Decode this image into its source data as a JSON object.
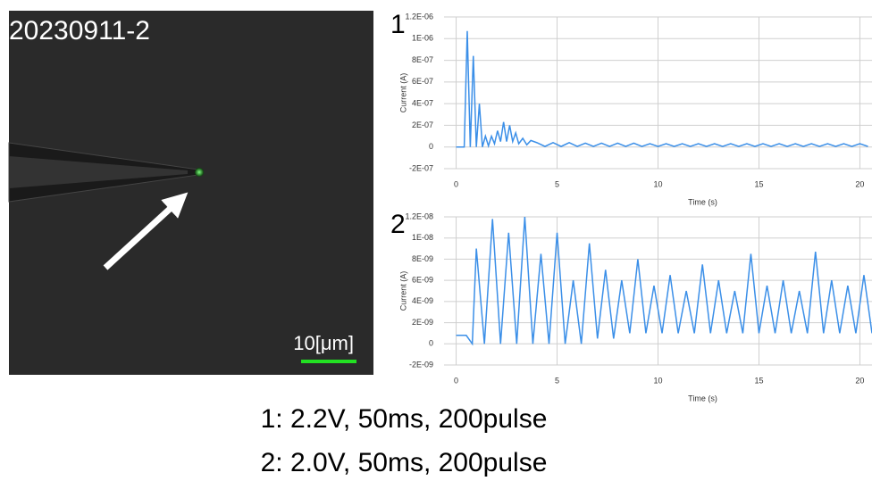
{
  "image": {
    "label": "20230911-2",
    "scale_bar": "10[μm]"
  },
  "caption": [
    "1: 2.2V, 50ms, 200pulse",
    "2: 2.0V, 50ms, 200pulse"
  ],
  "chart_data": [
    {
      "type": "line",
      "title": "1",
      "xlabel": "Time (s)",
      "ylabel": "Current (A)",
      "grid": true,
      "xlim": [
        -0.6,
        20.6
      ],
      "xticks": [
        0,
        5,
        10,
        15,
        20
      ],
      "ylim": [
        -2e-07,
        1.2e-06
      ],
      "yticks": [
        {
          "value": -2e-07,
          "label": "-2E-07"
        },
        0,
        {
          "value": 2e-07,
          "label": "2E-07"
        },
        {
          "value": 4e-07,
          "label": "4E-07"
        },
        {
          "value": 6e-07,
          "label": "6E-07"
        },
        {
          "value": 8e-07,
          "label": "8E-07"
        },
        {
          "value": 1e-06,
          "label": "1E-06"
        },
        {
          "value": 1.2e-06,
          "label": "1.2E-06"
        }
      ],
      "series": [
        {
          "color": "#3b8fe8",
          "x": [
            0,
            0.4,
            0.55,
            0.7,
            0.85,
            1.0,
            1.15,
            1.3,
            1.45,
            1.6,
            1.75,
            1.9,
            2.05,
            2.2,
            2.35,
            2.5,
            2.65,
            2.8,
            2.95,
            3.1,
            3.3,
            3.5,
            3.7,
            4.0,
            4.4,
            4.8,
            5.2,
            5.6,
            6.0,
            6.4,
            6.8,
            7.2,
            7.6,
            8.0,
            8.4,
            8.8,
            9.2,
            9.6,
            10.0,
            10.4,
            10.8,
            11.2,
            11.6,
            12.0,
            12.4,
            12.8,
            13.2,
            13.6,
            14.0,
            14.4,
            14.8,
            15.2,
            15.6,
            16.0,
            16.4,
            16.8,
            17.2,
            17.6,
            18.0,
            18.4,
            18.8,
            19.2,
            19.6,
            20.0,
            20.4
          ],
          "values": [
            0,
            0,
            1.07e-06,
            0,
            8.4e-07,
            0,
            4e-07,
            0,
            1e-07,
            1e-08,
            1e-07,
            3e-08,
            1.5e-07,
            5e-08,
            2.3e-07,
            5e-08,
            2e-07,
            5e-08,
            1.3e-07,
            3e-08,
            8e-08,
            2e-08,
            6e-08,
            4e-08,
            5e-09,
            4e-08,
            5e-09,
            4e-08,
            5e-09,
            3.5e-08,
            5e-09,
            3.5e-08,
            5e-09,
            3.5e-08,
            5e-09,
            3.5e-08,
            5e-09,
            3e-08,
            5e-09,
            3e-08,
            5e-09,
            3e-08,
            5e-09,
            3e-08,
            5e-09,
            3e-08,
            5e-09,
            3e-08,
            5e-09,
            3e-08,
            5e-09,
            3e-08,
            5e-09,
            3e-08,
            5e-09,
            3e-08,
            5e-09,
            3e-08,
            5e-09,
            3e-08,
            5e-09,
            3e-08,
            5e-09,
            3e-08,
            5e-09
          ]
        }
      ]
    },
    {
      "type": "line",
      "title": "2",
      "xlabel": "Time (s)",
      "ylabel": "Current (A)",
      "grid": true,
      "xlim": [
        -0.6,
        20.6
      ],
      "xticks": [
        0,
        5,
        10,
        15,
        20
      ],
      "ylim": [
        -2e-09,
        1.2e-08
      ],
      "yticks": [
        {
          "value": -2e-09,
          "label": "-2E-09"
        },
        0,
        {
          "value": 2e-09,
          "label": "2E-09"
        },
        {
          "value": 4e-09,
          "label": "4E-09"
        },
        {
          "value": 6e-09,
          "label": "6E-09"
        },
        {
          "value": 8e-09,
          "label": "8E-09"
        },
        {
          "value": 1e-08,
          "label": "1E-08"
        },
        {
          "value": 1.2e-08,
          "label": "1.2E-08"
        }
      ],
      "series": [
        {
          "color": "#3b8fe8",
          "x": [
            0,
            0.5,
            0.8,
            1.0,
            1.4,
            1.8,
            2.2,
            2.6,
            3.0,
            3.4,
            3.8,
            4.2,
            4.6,
            5.0,
            5.4,
            5.8,
            6.2,
            6.6,
            7.0,
            7.4,
            7.8,
            8.2,
            8.6,
            9.0,
            9.4,
            9.8,
            10.2,
            10.6,
            11.0,
            11.4,
            11.8,
            12.2,
            12.6,
            13.0,
            13.4,
            13.8,
            14.2,
            14.6,
            15.0,
            15.4,
            15.8,
            16.2,
            16.6,
            17.0,
            17.4,
            17.8,
            18.2,
            18.6,
            19.0,
            19.4,
            19.8,
            20.2,
            20.6
          ],
          "values": [
            8e-10,
            8e-10,
            0,
            9e-09,
            0,
            1.18e-08,
            0,
            1.05e-08,
            0,
            1.2e-08,
            0,
            8.5e-09,
            0,
            1.05e-08,
            0,
            6e-09,
            0,
            9.5e-09,
            5e-10,
            7e-09,
            5e-10,
            6e-09,
            1e-09,
            8e-09,
            1e-09,
            5.5e-09,
            1e-09,
            6.5e-09,
            1e-09,
            5e-09,
            1e-09,
            7.5e-09,
            1e-09,
            6e-09,
            1e-09,
            5e-09,
            1e-09,
            8.5e-09,
            1e-09,
            5.5e-09,
            1e-09,
            6e-09,
            1e-09,
            5e-09,
            1e-09,
            8.7e-09,
            1e-09,
            6e-09,
            1e-09,
            5.5e-09,
            1e-09,
            6.5e-09,
            1e-09
          ]
        }
      ]
    }
  ]
}
